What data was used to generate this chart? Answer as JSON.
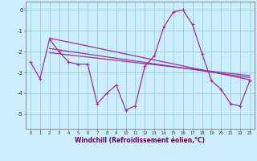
{
  "xlabel": "Windchill (Refroidissement éolien,°C)",
  "bg_color": "#cceeff",
  "grid_color": "#99ccdd",
  "line_color": "#993399",
  "x_hours": [
    0,
    1,
    2,
    3,
    4,
    5,
    6,
    7,
    8,
    9,
    10,
    11,
    12,
    13,
    14,
    15,
    16,
    17,
    18,
    19,
    20,
    21,
    22,
    23
  ],
  "y_main": [
    -2.5,
    -3.3,
    -1.4,
    -2.0,
    -2.5,
    -2.6,
    -2.6,
    -4.5,
    -4.0,
    -3.6,
    -4.8,
    -4.6,
    -2.7,
    -2.2,
    -0.8,
    -0.1,
    0.0,
    -0.7,
    -2.1,
    -3.4,
    -3.8,
    -4.5,
    -4.6,
    -3.4
  ],
  "diag_lines": [
    {
      "x0": 2,
      "y0": -1.35,
      "x1": 23,
      "y1": -3.35
    },
    {
      "x0": 2,
      "y0": -1.85,
      "x1": 23,
      "y1": -3.25
    },
    {
      "x0": 2,
      "y0": -2.05,
      "x1": 23,
      "y1": -3.15
    }
  ],
  "ylim": [
    -5.7,
    0.4
  ],
  "xlim": [
    -0.5,
    23.5
  ],
  "yticks": [
    0,
    -1,
    -2,
    -3,
    -4,
    -5
  ],
  "xticks": [
    0,
    1,
    2,
    3,
    4,
    5,
    6,
    7,
    8,
    9,
    10,
    11,
    12,
    13,
    14,
    15,
    16,
    17,
    18,
    19,
    20,
    21,
    22,
    23
  ]
}
